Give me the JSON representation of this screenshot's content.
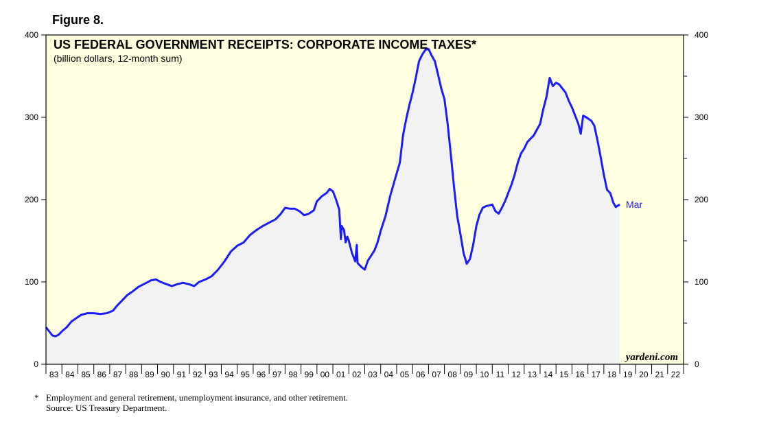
{
  "figure_label": "Figure 8.",
  "footnote": {
    "marker": "*",
    "text": "Employment and general retirement, unemployment insurance, and other retirement.",
    "source": "Source: US Treasury Department."
  },
  "colors": {
    "plot_background": "#ffffdf",
    "area_fill": "#f2f2f2",
    "line": "#1a1aff",
    "end_label": "#1a1aff"
  },
  "chart_data": {
    "type": "area",
    "title": "US FEDERAL GOVERNMENT RECEIPTS: CORPORATE INCOME TAXES*",
    "subtitle": "(billion dollars, 12-month sum)",
    "watermark": "yardeni.com",
    "end_label": "Mar",
    "ylim": [
      0,
      400
    ],
    "xlim": [
      1983,
      2023
    ],
    "y_ticks": [
      0,
      100,
      200,
      300,
      400
    ],
    "y_tick_labels": [
      "0",
      "100",
      "200",
      "300",
      "400"
    ],
    "x_tick_labels": [
      "83",
      "84",
      "85",
      "86",
      "87",
      "88",
      "89",
      "90",
      "91",
      "92",
      "93",
      "94",
      "95",
      "96",
      "97",
      "98",
      "99",
      "00",
      "01",
      "02",
      "03",
      "04",
      "05",
      "06",
      "07",
      "08",
      "09",
      "10",
      "11",
      "12",
      "13",
      "14",
      "15",
      "16",
      "17",
      "18",
      "19",
      "20",
      "21",
      "22"
    ],
    "series": [
      {
        "name": "Corporate income taxes (12-month sum)",
        "points": [
          [
            1983.0,
            45
          ],
          [
            1983.2,
            40
          ],
          [
            1983.4,
            35
          ],
          [
            1983.6,
            34
          ],
          [
            1983.8,
            36
          ],
          [
            1984.0,
            40
          ],
          [
            1984.3,
            45
          ],
          [
            1984.6,
            52
          ],
          [
            1984.9,
            56
          ],
          [
            1985.2,
            60
          ],
          [
            1985.6,
            62
          ],
          [
            1986.0,
            62
          ],
          [
            1986.4,
            61
          ],
          [
            1986.8,
            62
          ],
          [
            1987.2,
            65
          ],
          [
            1987.5,
            72
          ],
          [
            1987.8,
            78
          ],
          [
            1988.1,
            84
          ],
          [
            1988.4,
            88
          ],
          [
            1988.8,
            94
          ],
          [
            1989.2,
            98
          ],
          [
            1989.6,
            102
          ],
          [
            1989.9,
            103
          ],
          [
            1990.2,
            100
          ],
          [
            1990.6,
            97
          ],
          [
            1990.9,
            95
          ],
          [
            1991.2,
            97
          ],
          [
            1991.6,
            99
          ],
          [
            1992.0,
            97
          ],
          [
            1992.3,
            95
          ],
          [
            1992.6,
            100
          ],
          [
            1993.0,
            103
          ],
          [
            1993.4,
            107
          ],
          [
            1993.8,
            115
          ],
          [
            1994.2,
            125
          ],
          [
            1994.6,
            137
          ],
          [
            1995.0,
            144
          ],
          [
            1995.4,
            148
          ],
          [
            1995.8,
            157
          ],
          [
            1996.2,
            163
          ],
          [
            1996.6,
            168
          ],
          [
            1997.0,
            172
          ],
          [
            1997.4,
            176
          ],
          [
            1997.7,
            182
          ],
          [
            1998.0,
            190
          ],
          [
            1998.3,
            189
          ],
          [
            1998.6,
            189
          ],
          [
            1998.9,
            186
          ],
          [
            1999.2,
            181
          ],
          [
            1999.5,
            183
          ],
          [
            1999.8,
            187
          ],
          [
            2000.0,
            198
          ],
          [
            2000.3,
            204
          ],
          [
            2000.6,
            208
          ],
          [
            2000.8,
            213
          ],
          [
            2001.0,
            210
          ],
          [
            2001.2,
            200
          ],
          [
            2001.4,
            188
          ],
          [
            2001.5,
            152
          ],
          [
            2001.55,
            168
          ],
          [
            2001.7,
            163
          ],
          [
            2001.8,
            148
          ],
          [
            2001.9,
            155
          ],
          [
            2002.0,
            150
          ],
          [
            2002.2,
            135
          ],
          [
            2002.4,
            125
          ],
          [
            2002.5,
            145
          ],
          [
            2002.55,
            123
          ],
          [
            2002.8,
            118
          ],
          [
            2003.0,
            115
          ],
          [
            2003.2,
            126
          ],
          [
            2003.4,
            132
          ],
          [
            2003.6,
            138
          ],
          [
            2003.8,
            148
          ],
          [
            2004.0,
            162
          ],
          [
            2004.3,
            180
          ],
          [
            2004.6,
            205
          ],
          [
            2004.9,
            225
          ],
          [
            2005.2,
            245
          ],
          [
            2005.4,
            278
          ],
          [
            2005.6,
            298
          ],
          [
            2005.8,
            315
          ],
          [
            2006.0,
            330
          ],
          [
            2006.2,
            348
          ],
          [
            2006.4,
            368
          ],
          [
            2006.6,
            376
          ],
          [
            2006.8,
            382
          ],
          [
            2007.0,
            383
          ],
          [
            2007.2,
            375
          ],
          [
            2007.4,
            368
          ],
          [
            2007.6,
            352
          ],
          [
            2007.8,
            335
          ],
          [
            2008.0,
            322
          ],
          [
            2008.2,
            292
          ],
          [
            2008.4,
            255
          ],
          [
            2008.6,
            215
          ],
          [
            2008.8,
            180
          ],
          [
            2009.0,
            158
          ],
          [
            2009.2,
            135
          ],
          [
            2009.4,
            122
          ],
          [
            2009.6,
            128
          ],
          [
            2009.8,
            145
          ],
          [
            2010.0,
            168
          ],
          [
            2010.2,
            182
          ],
          [
            2010.4,
            190
          ],
          [
            2010.6,
            192
          ],
          [
            2010.8,
            193
          ],
          [
            2011.0,
            194
          ],
          [
            2011.2,
            186
          ],
          [
            2011.4,
            183
          ],
          [
            2011.6,
            190
          ],
          [
            2011.8,
            198
          ],
          [
            2012.0,
            208
          ],
          [
            2012.2,
            218
          ],
          [
            2012.4,
            230
          ],
          [
            2012.6,
            245
          ],
          [
            2012.8,
            256
          ],
          [
            2013.0,
            262
          ],
          [
            2013.2,
            270
          ],
          [
            2013.4,
            274
          ],
          [
            2013.6,
            278
          ],
          [
            2013.8,
            285
          ],
          [
            2014.0,
            292
          ],
          [
            2014.2,
            310
          ],
          [
            2014.4,
            325
          ],
          [
            2014.6,
            348
          ],
          [
            2014.8,
            338
          ],
          [
            2015.0,
            342
          ],
          [
            2015.2,
            340
          ],
          [
            2015.4,
            335
          ],
          [
            2015.6,
            330
          ],
          [
            2015.8,
            320
          ],
          [
            2016.0,
            312
          ],
          [
            2016.2,
            302
          ],
          [
            2016.4,
            292
          ],
          [
            2016.55,
            280
          ],
          [
            2016.7,
            302
          ],
          [
            2016.9,
            300
          ],
          [
            2017.2,
            296
          ],
          [
            2017.4,
            290
          ],
          [
            2017.6,
            272
          ],
          [
            2017.8,
            252
          ],
          [
            2018.0,
            230
          ],
          [
            2018.2,
            212
          ],
          [
            2018.4,
            208
          ],
          [
            2018.6,
            196
          ],
          [
            2018.75,
            191
          ],
          [
            2018.9,
            193
          ],
          [
            2019.0,
            194
          ]
        ]
      }
    ]
  }
}
